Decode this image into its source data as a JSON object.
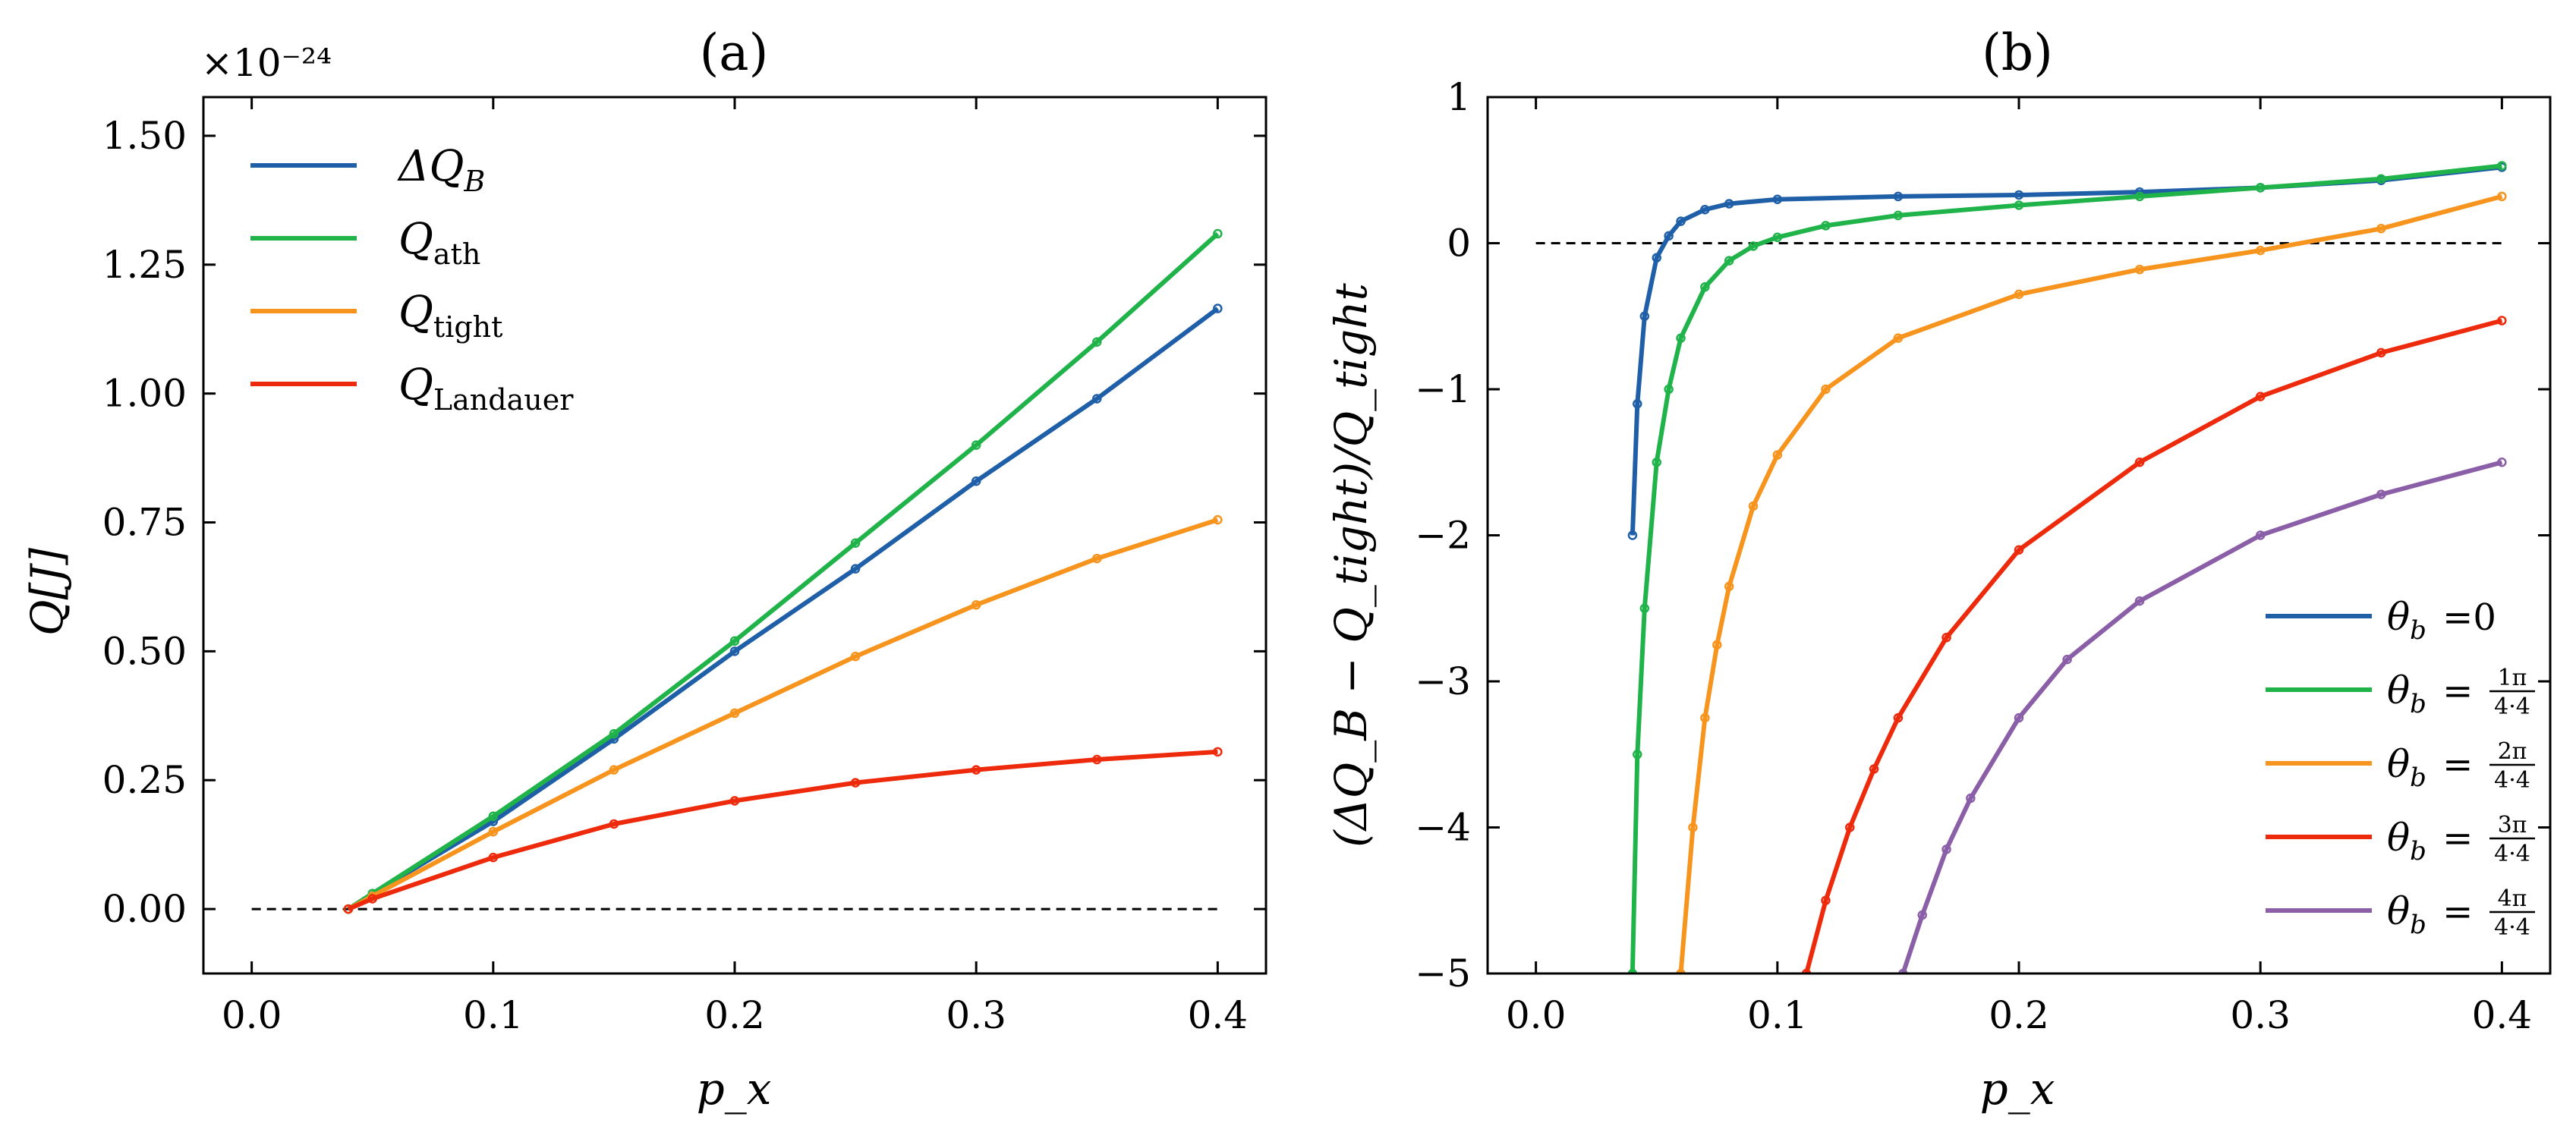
{
  "chart_data": [
    {
      "type": "line",
      "title": "(a)",
      "xlabel": "p_x",
      "ylabel": "Q[J]",
      "offset_text": "×10⁻²⁴",
      "xlim": [
        -0.02,
        0.42
      ],
      "ylim": [
        -0.125,
        1.575
      ],
      "xticks": [
        "0.0",
        "0.1",
        "0.2",
        "0.3",
        "0.4"
      ],
      "yticks": [
        "0.00",
        "0.25",
        "0.50",
        "0.75",
        "1.00",
        "1.25",
        "1.50"
      ],
      "grid": false,
      "legend_position": "top-left",
      "reference_line_y": 0,
      "series": [
        {
          "name": "ΔQ",
          "sub": "B",
          "color": "#1f5fa8",
          "x": [
            0.04,
            0.05,
            0.1,
            0.15,
            0.2,
            0.25,
            0.3,
            0.35,
            0.4
          ],
          "values": [
            0.0,
            0.03,
            0.17,
            0.33,
            0.5,
            0.66,
            0.83,
            0.99,
            1.165
          ]
        },
        {
          "name": "Q",
          "sub": "ath",
          "color": "#1fb34a",
          "x": [
            0.04,
            0.05,
            0.1,
            0.15,
            0.2,
            0.25,
            0.3,
            0.35,
            0.4
          ],
          "values": [
            0.0,
            0.03,
            0.18,
            0.34,
            0.52,
            0.71,
            0.9,
            1.1,
            1.31
          ]
        },
        {
          "name": "Q",
          "sub": "tight",
          "color": "#f7941d",
          "x": [
            0.04,
            0.05,
            0.1,
            0.15,
            0.2,
            0.25,
            0.3,
            0.35,
            0.4
          ],
          "values": [
            0.0,
            0.025,
            0.15,
            0.27,
            0.38,
            0.49,
            0.59,
            0.68,
            0.755
          ]
        },
        {
          "name": "Q",
          "sub": "Landauer",
          "color": "#ee2a0c",
          "x": [
            0.04,
            0.05,
            0.1,
            0.15,
            0.2,
            0.25,
            0.3,
            0.35,
            0.4
          ],
          "values": [
            0.0,
            0.02,
            0.1,
            0.165,
            0.21,
            0.245,
            0.27,
            0.29,
            0.305
          ]
        }
      ]
    },
    {
      "type": "line",
      "title": "(b)",
      "xlabel": "p_x",
      "ylabel": "(ΔQ_B − Q_tight)/Q_tight",
      "xlim": [
        -0.02,
        0.42
      ],
      "ylim": [
        -5,
        1
      ],
      "xticks": [
        "0.0",
        "0.1",
        "0.2",
        "0.3",
        "0.4"
      ],
      "yticks": [
        "1",
        "0",
        "−1",
        "−2",
        "−3",
        "−4",
        "−5"
      ],
      "grid": false,
      "legend_position": "bottom-right",
      "reference_line_y": 0,
      "series": [
        {
          "name": "θ",
          "sub": "b",
          "eq": "=0",
          "frac_num": "",
          "frac_den": "",
          "color": "#1f5fa8",
          "x": [
            0.04,
            0.042,
            0.045,
            0.05,
            0.055,
            0.06,
            0.07,
            0.08,
            0.1,
            0.15,
            0.2,
            0.25,
            0.3,
            0.35,
            0.4
          ],
          "values": [
            -2.0,
            -1.1,
            -0.5,
            -0.1,
            0.05,
            0.15,
            0.23,
            0.27,
            0.3,
            0.32,
            0.33,
            0.35,
            0.38,
            0.43,
            0.52
          ]
        },
        {
          "name": "θ",
          "sub": "b",
          "eq": "=",
          "frac_num": "1π",
          "frac_den": "4·4",
          "color": "#1fb34a",
          "x": [
            0.04,
            0.042,
            0.045,
            0.05,
            0.055,
            0.06,
            0.07,
            0.08,
            0.09,
            0.1,
            0.12,
            0.15,
            0.2,
            0.25,
            0.3,
            0.35,
            0.4
          ],
          "values": [
            -5.0,
            -3.5,
            -2.5,
            -1.5,
            -1.0,
            -0.65,
            -0.3,
            -0.12,
            -0.02,
            0.04,
            0.12,
            0.19,
            0.26,
            0.32,
            0.38,
            0.44,
            0.53
          ]
        },
        {
          "name": "θ",
          "sub": "b",
          "eq": "=",
          "frac_num": "2π",
          "frac_den": "4·4",
          "color": "#f7941d",
          "x": [
            0.06,
            0.065,
            0.07,
            0.075,
            0.08,
            0.09,
            0.1,
            0.12,
            0.15,
            0.2,
            0.25,
            0.3,
            0.35,
            0.4
          ],
          "values": [
            -5.0,
            -4.0,
            -3.25,
            -2.75,
            -2.35,
            -1.8,
            -1.45,
            -1.0,
            -0.65,
            -0.35,
            -0.18,
            -0.05,
            0.1,
            0.32
          ]
        },
        {
          "name": "θ",
          "sub": "b",
          "eq": "=",
          "frac_num": "3π",
          "frac_den": "4·4",
          "color": "#ee2a0c",
          "x": [
            0.112,
            0.12,
            0.13,
            0.14,
            0.15,
            0.17,
            0.2,
            0.25,
            0.3,
            0.35,
            0.4
          ],
          "values": [
            -5.0,
            -4.5,
            -4.0,
            -3.6,
            -3.25,
            -2.7,
            -2.1,
            -1.5,
            -1.05,
            -0.75,
            -0.53
          ]
        },
        {
          "name": "θ",
          "sub": "b",
          "eq": "=",
          "frac_num": "4π",
          "frac_den": "4·4",
          "color": "#8b5fa8",
          "x": [
            0.152,
            0.16,
            0.17,
            0.18,
            0.2,
            0.22,
            0.25,
            0.3,
            0.35,
            0.4
          ],
          "values": [
            -5.0,
            -4.6,
            -4.15,
            -3.8,
            -3.25,
            -2.85,
            -2.45,
            -2.0,
            -1.72,
            -1.5
          ]
        }
      ]
    }
  ]
}
